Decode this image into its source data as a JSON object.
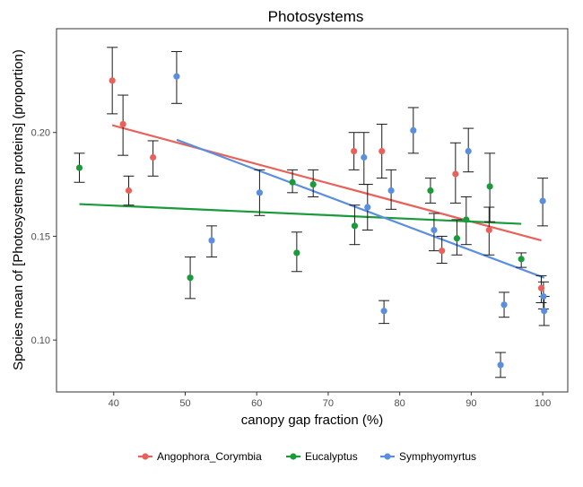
{
  "chart_data": {
    "type": "scatter",
    "title": "Photosystems",
    "xlabel": "canopy gap fraction (%)",
    "ylabel": "Species mean of [Photosystems proteins] (proportion)",
    "xlim": [
      32,
      103.5
    ],
    "ylim": [
      0.075,
      0.25
    ],
    "x_ticks": [
      40,
      50,
      60,
      70,
      80,
      90,
      100
    ],
    "x_tick_labels": [
      "40",
      "50",
      "60",
      "70",
      "80",
      "90",
      "100"
    ],
    "y_ticks": [
      0.1,
      0.15,
      0.2
    ],
    "y_tick_labels": [
      "0.10",
      "0.15",
      "0.20"
    ],
    "grid": false,
    "legend_position": "bottom",
    "series": [
      {
        "name": "Angophora_Corymbia",
        "color": "#E8625B",
        "points": [
          {
            "x": 39.8,
            "y": 0.225,
            "lo": 0.209,
            "hi": 0.241
          },
          {
            "x": 41.3,
            "y": 0.204,
            "lo": 0.189,
            "hi": 0.218
          },
          {
            "x": 42.1,
            "y": 0.172,
            "lo": 0.165,
            "hi": 0.179
          },
          {
            "x": 45.5,
            "y": 0.188,
            "lo": 0.179,
            "hi": 0.196
          },
          {
            "x": 73.6,
            "y": 0.191,
            "lo": 0.182,
            "hi": 0.2
          },
          {
            "x": 77.5,
            "y": 0.191,
            "lo": 0.178,
            "hi": 0.204
          },
          {
            "x": 85.9,
            "y": 0.143,
            "lo": 0.137,
            "hi": 0.15
          },
          {
            "x": 87.8,
            "y": 0.18,
            "lo": 0.166,
            "hi": 0.195
          },
          {
            "x": 92.5,
            "y": 0.153,
            "lo": 0.141,
            "hi": 0.164
          },
          {
            "x": 99.8,
            "y": 0.125,
            "lo": 0.118,
            "hi": 0.131
          }
        ],
        "trend": {
          "x": [
            39.8,
            99.8
          ],
          "y": [
            0.2035,
            0.148
          ]
        }
      },
      {
        "name": "Eucalyptus",
        "color": "#1A9A3A",
        "points": [
          {
            "x": 35.2,
            "y": 0.183,
            "lo": 0.176,
            "hi": 0.19
          },
          {
            "x": 50.7,
            "y": 0.13,
            "lo": 0.12,
            "hi": 0.14
          },
          {
            "x": 65.0,
            "y": 0.176,
            "lo": 0.171,
            "hi": 0.182
          },
          {
            "x": 65.6,
            "y": 0.142,
            "lo": 0.133,
            "hi": 0.152
          },
          {
            "x": 67.9,
            "y": 0.175,
            "lo": 0.169,
            "hi": 0.182
          },
          {
            "x": 73.7,
            "y": 0.155,
            "lo": 0.146,
            "hi": 0.165
          },
          {
            "x": 84.3,
            "y": 0.172,
            "lo": 0.166,
            "hi": 0.178
          },
          {
            "x": 88.0,
            "y": 0.149,
            "lo": 0.141,
            "hi": 0.158
          },
          {
            "x": 89.3,
            "y": 0.158,
            "lo": 0.146,
            "hi": 0.169
          },
          {
            "x": 92.6,
            "y": 0.174,
            "lo": 0.157,
            "hi": 0.19
          },
          {
            "x": 97.0,
            "y": 0.139,
            "lo": 0.135,
            "hi": 0.142
          }
        ],
        "trend": {
          "x": [
            35.2,
            97.0
          ],
          "y": [
            0.1655,
            0.156
          ]
        }
      },
      {
        "name": "Symphyomyrtus",
        "color": "#5A8FE0",
        "points": [
          {
            "x": 48.8,
            "y": 0.227,
            "lo": 0.214,
            "hi": 0.239
          },
          {
            "x": 53.7,
            "y": 0.148,
            "lo": 0.14,
            "hi": 0.155
          },
          {
            "x": 60.4,
            "y": 0.171,
            "lo": 0.16,
            "hi": 0.182
          },
          {
            "x": 75.0,
            "y": 0.188,
            "lo": 0.175,
            "hi": 0.2
          },
          {
            "x": 75.5,
            "y": 0.164,
            "lo": 0.153,
            "hi": 0.175
          },
          {
            "x": 77.8,
            "y": 0.114,
            "lo": 0.108,
            "hi": 0.119
          },
          {
            "x": 78.8,
            "y": 0.172,
            "lo": 0.163,
            "hi": 0.182
          },
          {
            "x": 81.9,
            "y": 0.201,
            "lo": 0.19,
            "hi": 0.212
          },
          {
            "x": 84.8,
            "y": 0.153,
            "lo": 0.143,
            "hi": 0.161
          },
          {
            "x": 89.6,
            "y": 0.191,
            "lo": 0.181,
            "hi": 0.202
          },
          {
            "x": 94.1,
            "y": 0.088,
            "lo": 0.082,
            "hi": 0.094
          },
          {
            "x": 94.6,
            "y": 0.117,
            "lo": 0.111,
            "hi": 0.123
          },
          {
            "x": 100.0,
            "y": 0.167,
            "lo": 0.155,
            "hi": 0.178
          },
          {
            "x": 100.1,
            "y": 0.121,
            "lo": 0.115,
            "hi": 0.128
          },
          {
            "x": 100.2,
            "y": 0.114,
            "lo": 0.107,
            "hi": 0.121
          }
        ],
        "trend": {
          "x": [
            48.8,
            100.2
          ],
          "y": [
            0.1965,
            0.13
          ]
        }
      }
    ]
  }
}
